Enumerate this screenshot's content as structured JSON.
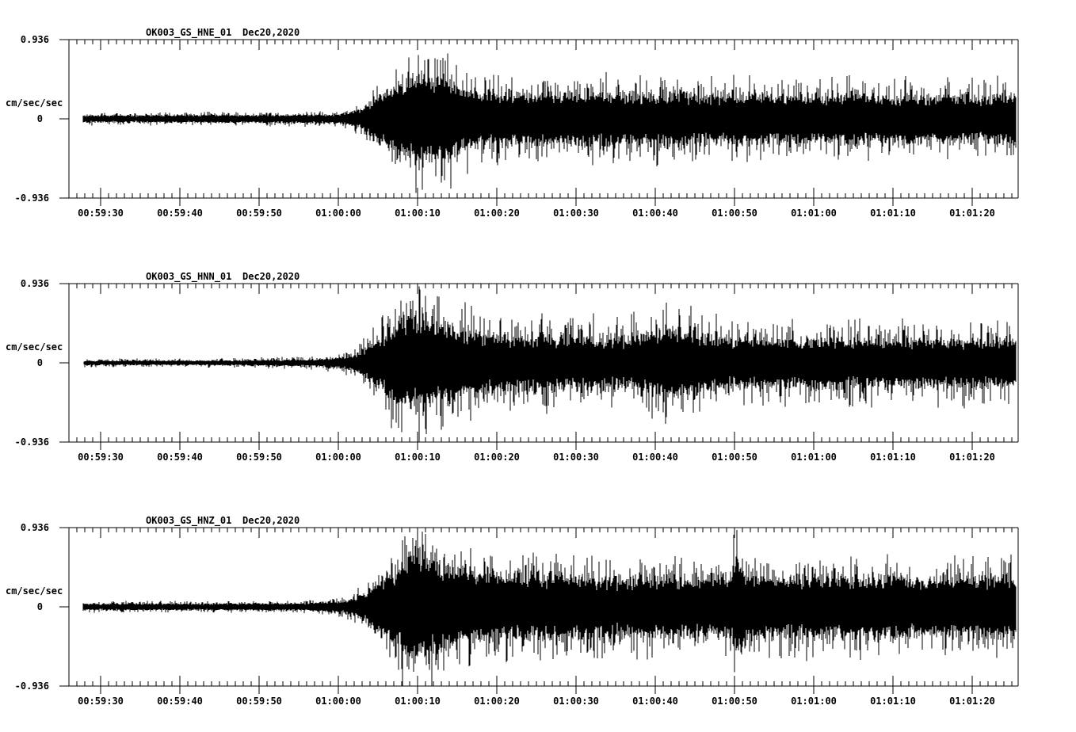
{
  "page": {
    "background": "#ffffff",
    "axis_color": "#000000"
  },
  "chart_data": [
    {
      "type": "line",
      "subtype": "seismogram-waveform",
      "title_id": "OK003_GS_HNE_01",
      "title_date": "Dec20,2020",
      "channel_code": "HNE",
      "ylabel": "cm/sec/sec",
      "yticks": [
        "0.936",
        "0",
        "-0.936"
      ],
      "ylim": [
        -0.936,
        0.936
      ],
      "xticks": [
        "00:59:30",
        "00:59:40",
        "00:59:50",
        "01:00:00",
        "01:00:10",
        "01:00:20",
        "01:00:30",
        "01:00:40",
        "01:00:50",
        "01:01:00",
        "01:01:10",
        "01:01:20"
      ],
      "x_axis_start": "00:59:26",
      "x_axis_end": "01:01:26",
      "major_tick_interval_s": 10,
      "minor_tick_interval_s": 1,
      "trace_color": "#000000",
      "trace_start_s": 1.8,
      "trace_end_s": 119.5,
      "seed": 11,
      "body_fraction": 0.4,
      "envelope_peak_cm_s2": [
        [
          1.8,
          0.07
        ],
        [
          20,
          0.07
        ],
        [
          28,
          0.075
        ],
        [
          33,
          0.08
        ],
        [
          35,
          0.1
        ],
        [
          36.5,
          0.16
        ],
        [
          38,
          0.3
        ],
        [
          40,
          0.5
        ],
        [
          41.5,
          0.65
        ],
        [
          43,
          0.75
        ],
        [
          45,
          0.8
        ],
        [
          47,
          0.76
        ],
        [
          48.5,
          0.68
        ],
        [
          50,
          0.6
        ],
        [
          52,
          0.52
        ],
        [
          55,
          0.46
        ],
        [
          58,
          0.5
        ],
        [
          61,
          0.44
        ],
        [
          64,
          0.46
        ],
        [
          67,
          0.5
        ],
        [
          70,
          0.44
        ],
        [
          73,
          0.46
        ],
        [
          76,
          0.5
        ],
        [
          79,
          0.44
        ],
        [
          82,
          0.42
        ],
        [
          85,
          0.46
        ],
        [
          88,
          0.42
        ],
        [
          91,
          0.44
        ],
        [
          94,
          0.4
        ],
        [
          97,
          0.44
        ],
        [
          100,
          0.46
        ],
        [
          103,
          0.4
        ],
        [
          106,
          0.44
        ],
        [
          109,
          0.4
        ],
        [
          112,
          0.44
        ],
        [
          115,
          0.42
        ],
        [
          118,
          0.44
        ],
        [
          120,
          0.42
        ]
      ]
    },
    {
      "type": "line",
      "subtype": "seismogram-waveform",
      "title_id": "OK003_GS_HNN_01",
      "title_date": "Dec20,2020",
      "channel_code": "HNN",
      "ylabel": "cm/sec/sec",
      "yticks": [
        "0.936",
        "0",
        "-0.936"
      ],
      "ylim": [
        -0.936,
        0.936
      ],
      "xticks": [
        "00:59:30",
        "00:59:40",
        "00:59:50",
        "01:00:00",
        "01:00:10",
        "01:00:20",
        "01:00:30",
        "01:00:40",
        "01:00:50",
        "01:01:00",
        "01:01:10",
        "01:01:20"
      ],
      "x_axis_start": "00:59:26",
      "x_axis_end": "01:01:26",
      "major_tick_interval_s": 10,
      "minor_tick_interval_s": 1,
      "trace_color": "#000000",
      "trace_start_s": 1.9,
      "trace_end_s": 119.5,
      "seed": 23,
      "body_fraction": 0.38,
      "envelope_peak_cm_s2": [
        [
          1.9,
          0.045
        ],
        [
          16,
          0.045
        ],
        [
          22,
          0.05
        ],
        [
          27,
          0.06
        ],
        [
          31,
          0.07
        ],
        [
          34,
          0.1
        ],
        [
          36,
          0.16
        ],
        [
          37.5,
          0.28
        ],
        [
          39,
          0.45
        ],
        [
          41,
          0.7
        ],
        [
          42.5,
          0.92
        ],
        [
          44,
          0.8
        ],
        [
          45.5,
          0.88
        ],
        [
          47,
          0.82
        ],
        [
          48.5,
          0.72
        ],
        [
          50,
          0.62
        ],
        [
          52,
          0.56
        ],
        [
          54,
          0.52
        ],
        [
          57,
          0.5
        ],
        [
          60,
          0.52
        ],
        [
          63,
          0.46
        ],
        [
          66,
          0.5
        ],
        [
          69,
          0.46
        ],
        [
          72,
          0.52
        ],
        [
          74,
          0.56
        ],
        [
          75.5,
          0.62
        ],
        [
          76.5,
          0.7
        ],
        [
          77.5,
          0.6
        ],
        [
          79,
          0.56
        ],
        [
          81,
          0.5
        ],
        [
          83,
          0.48
        ],
        [
          86,
          0.46
        ],
        [
          89,
          0.48
        ],
        [
          92,
          0.44
        ],
        [
          95,
          0.48
        ],
        [
          98,
          0.44
        ],
        [
          101,
          0.46
        ],
        [
          104,
          0.44
        ],
        [
          107,
          0.46
        ],
        [
          110,
          0.44
        ],
        [
          113,
          0.46
        ],
        [
          116,
          0.44
        ],
        [
          120,
          0.46
        ]
      ]
    },
    {
      "type": "line",
      "subtype": "seismogram-waveform",
      "title_id": "OK003_GS_HNZ_01",
      "title_date": "Dec20,2020",
      "channel_code": "HNZ",
      "ylabel": "cm/sec/sec",
      "yticks": [
        "0.936",
        "0",
        "-0.936"
      ],
      "ylim": [
        -0.936,
        0.936
      ],
      "xticks": [
        "00:59:30",
        "00:59:40",
        "00:59:50",
        "01:00:00",
        "01:00:10",
        "01:00:20",
        "01:00:30",
        "01:00:40",
        "01:00:50",
        "01:01:00",
        "01:01:10",
        "01:01:20"
      ],
      "x_axis_start": "00:59:26",
      "x_axis_end": "01:01:26",
      "major_tick_interval_s": 10,
      "minor_tick_interval_s": 1,
      "trace_color": "#000000",
      "trace_start_s": 1.8,
      "trace_end_s": 119.5,
      "seed": 37,
      "body_fraction": 0.42,
      "envelope_peak_cm_s2": [
        [
          1.8,
          0.06
        ],
        [
          20,
          0.06
        ],
        [
          26,
          0.065
        ],
        [
          30,
          0.07
        ],
        [
          34,
          0.1
        ],
        [
          36,
          0.15
        ],
        [
          37.5,
          0.28
        ],
        [
          39,
          0.45
        ],
        [
          41,
          0.65
        ],
        [
          42.5,
          0.85
        ],
        [
          43.5,
          0.97
        ],
        [
          45,
          0.9
        ],
        [
          46.5,
          0.8
        ],
        [
          48,
          0.72
        ],
        [
          50,
          0.64
        ],
        [
          52,
          0.6
        ],
        [
          55,
          0.56
        ],
        [
          58,
          0.54
        ],
        [
          61,
          0.56
        ],
        [
          64,
          0.52
        ],
        [
          67,
          0.54
        ],
        [
          70,
          0.5
        ],
        [
          73,
          0.54
        ],
        [
          76,
          0.5
        ],
        [
          79,
          0.54
        ],
        [
          81.5,
          0.52
        ],
        [
          83.6,
          0.56
        ],
        [
          84.3,
          0.97
        ],
        [
          85,
          0.6
        ],
        [
          87,
          0.54
        ],
        [
          90,
          0.52
        ],
        [
          93,
          0.54
        ],
        [
          96,
          0.5
        ],
        [
          99,
          0.54
        ],
        [
          102,
          0.52
        ],
        [
          105,
          0.54
        ],
        [
          108,
          0.5
        ],
        [
          111,
          0.54
        ],
        [
          114,
          0.52
        ],
        [
          117,
          0.54
        ],
        [
          120,
          0.52
        ]
      ]
    }
  ]
}
